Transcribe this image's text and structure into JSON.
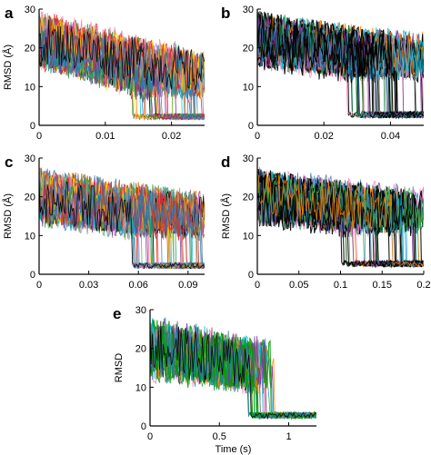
{
  "figure": {
    "background": "#ffffff"
  },
  "palette": [
    "#e41a1c",
    "#377eb8",
    "#4daf4a",
    "#984ea3",
    "#ff7f00",
    "#00bcd4",
    "#a65628",
    "#f781bf",
    "#999999",
    "#ffd700",
    "#1a9850",
    "#7b3294",
    "#d73027",
    "#2c7bb6",
    "#000000"
  ],
  "chart_data": [
    {
      "panel": "a",
      "type": "line",
      "ylabel": "RMSD (Å)",
      "xlabel": "",
      "xlim": [
        0,
        0.025
      ],
      "ylim": [
        0,
        30
      ],
      "xticks": [
        "0",
        "0.01",
        "0.02"
      ],
      "xtick_values": [
        0,
        0.01,
        0.02
      ],
      "yticks": [
        "0",
        "10",
        "20",
        "30"
      ],
      "ytick_values": [
        0,
        10,
        20,
        30
      ],
      "n_series": 60,
      "start_level": 22,
      "end_level": 6,
      "floor": 1.5,
      "switch_window": [
        0.014,
        0.025
      ],
      "noise": 6,
      "dominant_color": null
    },
    {
      "panel": "b",
      "type": "line",
      "ylabel": "",
      "xlabel": "",
      "xlim": [
        0,
        0.05
      ],
      "ylim": [
        0,
        30
      ],
      "xticks": [
        "0",
        "0.02",
        "0.04"
      ],
      "xtick_values": [
        0,
        0.02,
        0.04
      ],
      "yticks": [
        "0",
        "10",
        "20",
        "30"
      ],
      "ytick_values": [
        0,
        10,
        20,
        30
      ],
      "n_series": 60,
      "start_level": 22,
      "end_level": 14,
      "floor": 2,
      "switch_window": [
        0.026,
        0.05
      ],
      "noise": 6,
      "dominant_color": "#000000"
    },
    {
      "panel": "c",
      "type": "line",
      "ylabel": "RMSD (Å)",
      "xlabel": "",
      "xlim": [
        0,
        0.1
      ],
      "ylim": [
        0,
        30
      ],
      "xticks": [
        "0",
        "0.03",
        "0.06",
        "0.09"
      ],
      "xtick_values": [
        0,
        0.03,
        0.06,
        0.09
      ],
      "yticks": [
        "0",
        "10",
        "20",
        "30"
      ],
      "ytick_values": [
        0,
        10,
        20,
        30
      ],
      "n_series": 60,
      "start_level": 20,
      "end_level": 12,
      "floor": 1.5,
      "switch_window": [
        0.056,
        0.1
      ],
      "noise": 6,
      "dominant_color": null
    },
    {
      "panel": "d",
      "type": "line",
      "ylabel": "RMSD (Å)",
      "xlabel": "",
      "xlim": [
        0,
        0.2
      ],
      "ylim": [
        0,
        30
      ],
      "xticks": [
        "0",
        "0.05",
        "0.1",
        "0.15",
        "0.2"
      ],
      "xtick_values": [
        0,
        0.05,
        0.1,
        0.15,
        0.2
      ],
      "yticks": [
        "0",
        "10",
        "20",
        "30"
      ],
      "ytick_values": [
        0,
        10,
        20,
        30
      ],
      "n_series": 50,
      "start_level": 20,
      "end_level": 13,
      "floor": 2,
      "switch_window": [
        0.1,
        0.2
      ],
      "noise": 6,
      "dominant_color": "#000000"
    },
    {
      "panel": "e",
      "type": "line",
      "ylabel": "RMSD",
      "xlabel": "Time (s)",
      "xlim": [
        0,
        1.2
      ],
      "ylim": [
        0,
        30
      ],
      "xticks": [
        "0",
        "0.5",
        "1"
      ],
      "xtick_values": [
        0,
        0.5,
        1
      ],
      "yticks": [
        "0",
        "10",
        "20",
        "30"
      ],
      "ytick_values": [
        0,
        10,
        20,
        30
      ],
      "n_series": 30,
      "start_level": 20,
      "end_level": 12,
      "floor": 2,
      "switch_window": [
        0.7,
        0.88
      ],
      "noise": 7,
      "dominant_color": "#009900"
    }
  ]
}
